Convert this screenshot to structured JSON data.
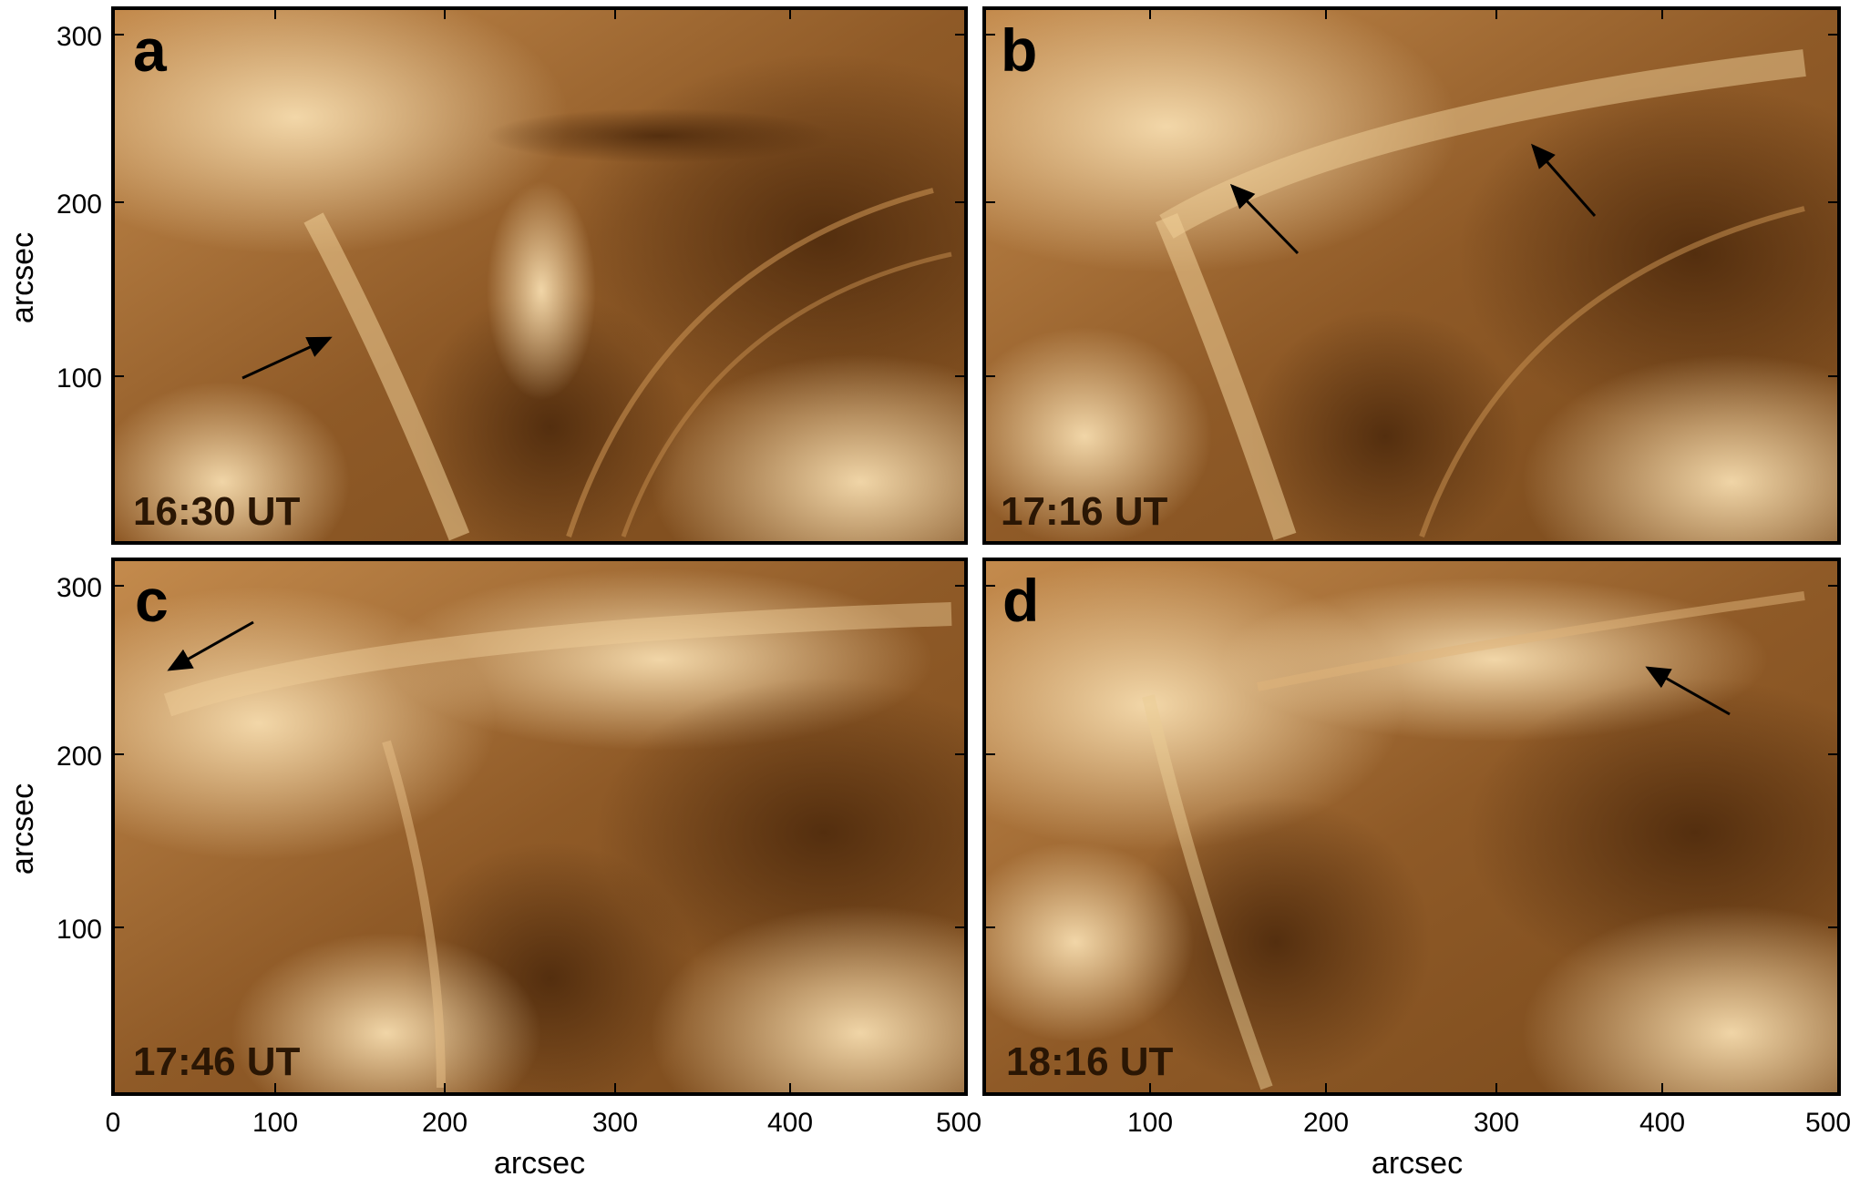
{
  "figure": {
    "axis_unit": "arcsec",
    "x_ticks": [
      "0",
      "100",
      "200",
      "300",
      "400",
      "500"
    ],
    "x_ticks_right": [
      "100",
      "200",
      "300",
      "400",
      "500"
    ],
    "y_ticks": [
      "300",
      "200",
      "100"
    ],
    "colors": {
      "frame": "#000000",
      "dark": "#5a3210",
      "mid": "#9a642c",
      "bright": "#f4d6a4"
    },
    "panels": [
      {
        "letter": "a",
        "time": "16:30 UT"
      },
      {
        "letter": "b",
        "time": "17:16 UT"
      },
      {
        "letter": "c",
        "time": "17:46 UT"
      },
      {
        "letter": "d",
        "time": "18:16 UT"
      }
    ]
  }
}
